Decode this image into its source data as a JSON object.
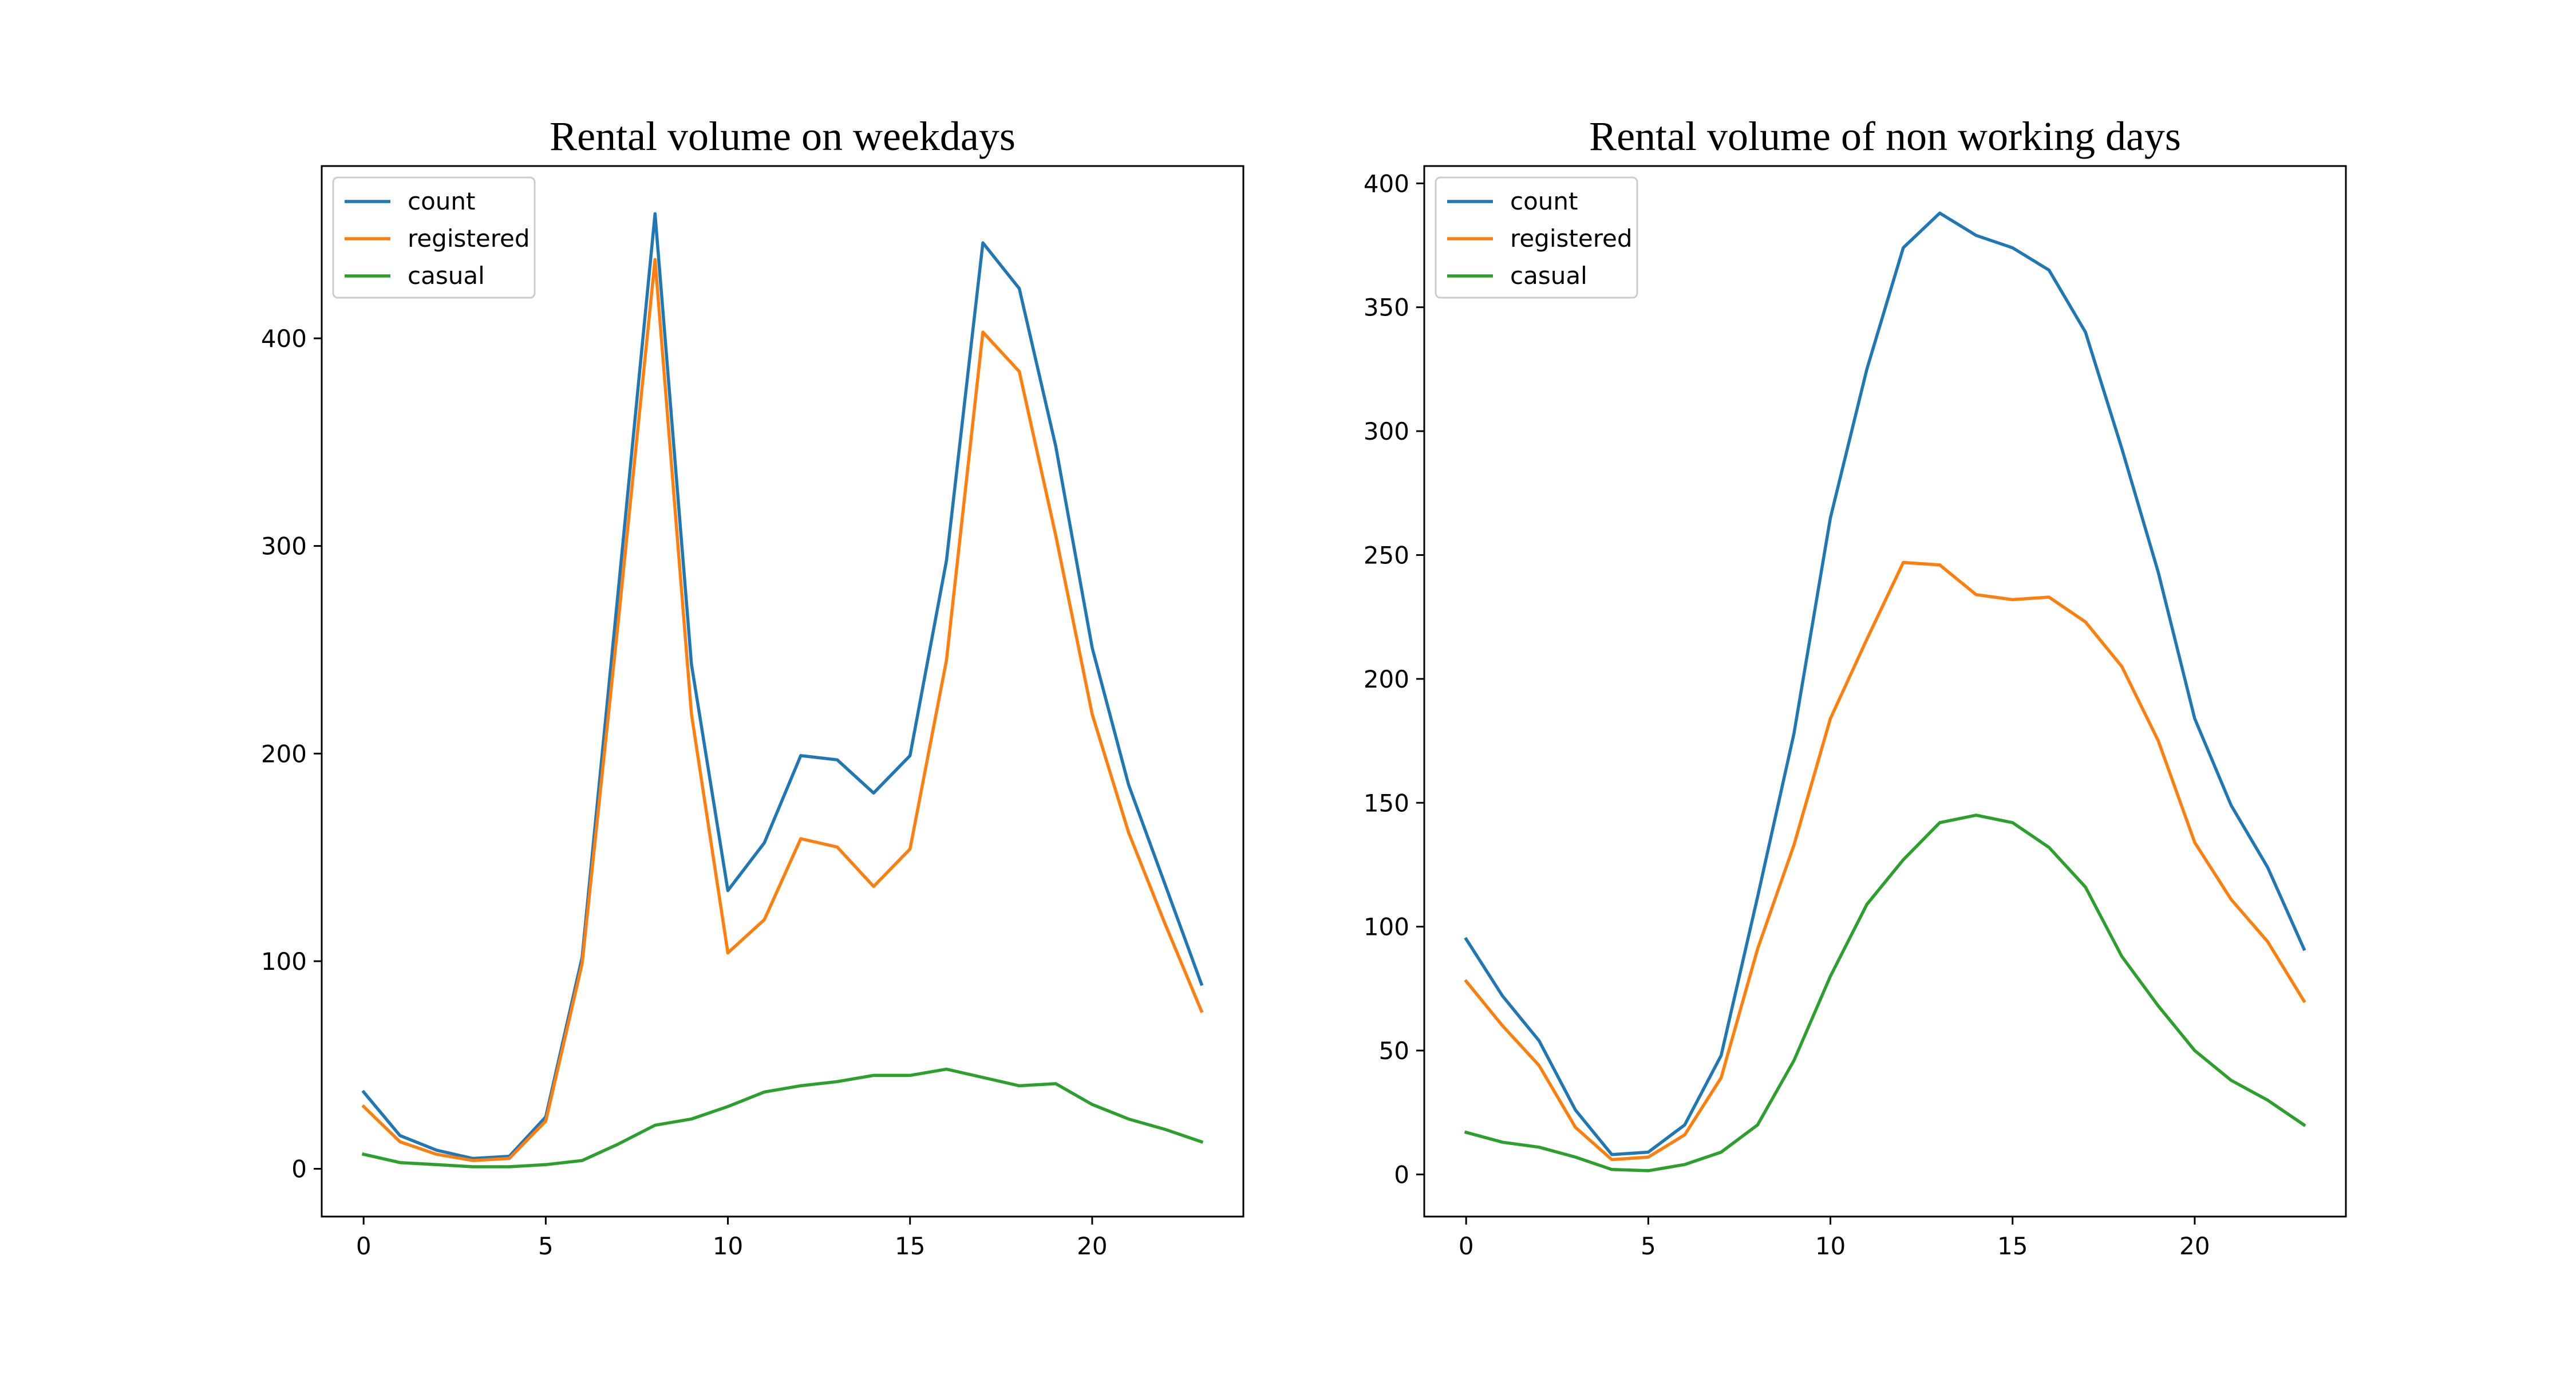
{
  "chart_data": [
    {
      "type": "line",
      "title": "Rental volume on weekdays",
      "xlabel": "",
      "ylabel": "",
      "xlim": [
        -1.15,
        24.15
      ],
      "ylim": [
        -23,
        483
      ],
      "xticks": [
        0,
        5,
        10,
        15,
        20
      ],
      "yticks": [
        0,
        100,
        200,
        300,
        400
      ],
      "grid": false,
      "legend_position": "top-left",
      "x": [
        0,
        1,
        2,
        3,
        4,
        5,
        6,
        7,
        8,
        9,
        10,
        11,
        12,
        13,
        14,
        15,
        16,
        17,
        18,
        19,
        20,
        21,
        22,
        23
      ],
      "series": [
        {
          "name": "count",
          "color": "#1f77b4",
          "values": [
            37,
            16,
            9,
            5,
            6,
            25,
            102,
            280,
            460,
            243,
            134,
            157,
            199,
            197,
            181,
            199,
            293,
            446,
            424,
            348,
            251,
            185,
            137,
            89
          ]
        },
        {
          "name": "registered",
          "color": "#ff7f0e",
          "values": [
            30,
            13,
            7,
            4,
            5,
            23,
            99,
            265,
            438,
            219,
            104,
            120,
            159,
            155,
            136,
            154,
            245,
            403,
            384,
            305,
            219,
            162,
            118,
            76
          ]
        },
        {
          "name": "casual",
          "color": "#2ca02c",
          "values": [
            7,
            3,
            2,
            1,
            1,
            2,
            4,
            12,
            21,
            24,
            30,
            37,
            40,
            42,
            45,
            45,
            48,
            44,
            40,
            41,
            31,
            24,
            19,
            13
          ]
        }
      ]
    },
    {
      "type": "line",
      "title": "Rental volume of non working days",
      "xlabel": "",
      "ylabel": "",
      "xlim": [
        -1.15,
        24.15
      ],
      "ylim": [
        -17,
        407
      ],
      "xticks": [
        0,
        5,
        10,
        15,
        20
      ],
      "yticks": [
        0,
        50,
        100,
        150,
        200,
        250,
        300,
        350,
        400
      ],
      "grid": false,
      "legend_position": "top-left",
      "x": [
        0,
        1,
        2,
        3,
        4,
        5,
        6,
        7,
        8,
        9,
        10,
        11,
        12,
        13,
        14,
        15,
        16,
        17,
        18,
        19,
        20,
        21,
        22,
        23
      ],
      "series": [
        {
          "name": "count",
          "color": "#1f77b4",
          "values": [
            95,
            72,
            54,
            26,
            8,
            9,
            20,
            48,
            112,
            178,
            265,
            325,
            374,
            388,
            379,
            374,
            365,
            340,
            293,
            243,
            184,
            149,
            124,
            91
          ]
        },
        {
          "name": "registered",
          "color": "#ff7f0e",
          "values": [
            78,
            60,
            44,
            19,
            6,
            7,
            16,
            39,
            91,
            133,
            184,
            216,
            247,
            246,
            234,
            232,
            233,
            223,
            205,
            175,
            134,
            111,
            94,
            70
          ]
        },
        {
          "name": "casual",
          "color": "#2ca02c",
          "values": [
            17,
            13,
            11,
            7,
            2,
            1.5,
            4,
            9,
            20,
            46,
            80,
            109,
            127,
            142,
            145,
            142,
            132,
            116,
            88,
            68,
            50,
            38,
            30,
            20
          ]
        }
      ]
    }
  ]
}
